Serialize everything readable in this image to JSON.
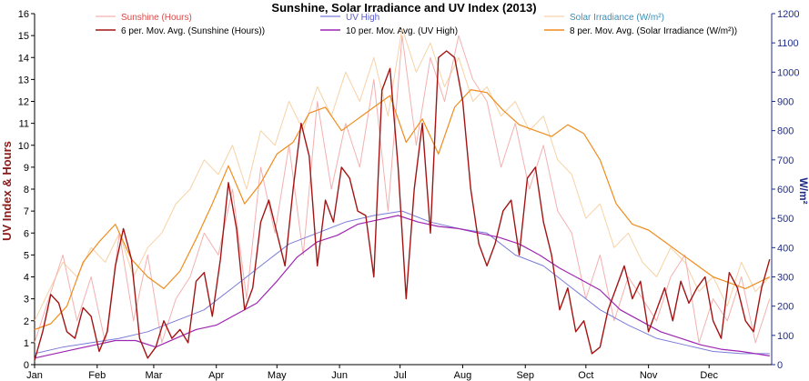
{
  "chart_data": {
    "type": "line",
    "title": "Sunshine, Solar Irradiance and UV Index (2013)",
    "ylabel": "UV Index & Hours",
    "y2label": "W/m²",
    "ylim": [
      0,
      16
    ],
    "y2lim": [
      0,
      1200
    ],
    "yticks": [
      "0",
      "1",
      "2",
      "3",
      "4",
      "5",
      "6",
      "7",
      "8",
      "9",
      "10",
      "11",
      "12",
      "13",
      "14",
      "15",
      "16"
    ],
    "y2ticks": [
      "0",
      "100",
      "200",
      "300",
      "400",
      "500",
      "600",
      "700",
      "800",
      "900",
      "1000",
      "1100",
      "1200"
    ],
    "xticks": [
      "Jan",
      "Feb",
      "Mar",
      "Apr",
      "May",
      "Jun",
      "Jul",
      "Aug",
      "Sep",
      "Oct",
      "Nov",
      "Dec"
    ],
    "legend_placement": "top",
    "grid": false,
    "series": [
      {
        "name": "Sunshine (Hours)",
        "axis": "left",
        "color": "#f4b0b0",
        "x": [
          0,
          7,
          14,
          21,
          28,
          35,
          42,
          49,
          56,
          63,
          70,
          77,
          84,
          91,
          98,
          105,
          112,
          119,
          126,
          133,
          140,
          147,
          154,
          161,
          168,
          175,
          182,
          189,
          196,
          203,
          210,
          217,
          224,
          231,
          238,
          245,
          252,
          259,
          266,
          273,
          280,
          287,
          294,
          301,
          308,
          315,
          322,
          329,
          336,
          343,
          350,
          357,
          364
        ],
        "values": [
          1,
          3,
          5,
          2,
          4,
          1,
          6,
          2,
          5,
          1,
          3,
          4,
          6,
          5,
          8,
          3,
          9,
          6,
          10,
          5,
          12,
          8,
          11,
          9,
          13,
          7,
          15,
          10,
          14,
          12,
          15,
          13,
          12,
          9,
          11,
          8,
          10,
          7,
          6,
          3,
          5,
          2,
          4,
          3,
          2,
          4,
          5,
          1,
          3,
          2,
          4,
          1,
          3
        ]
      },
      {
        "name": "UV High",
        "axis": "left",
        "color": "#7b7bd8",
        "x": [
          0,
          14,
          28,
          42,
          56,
          70,
          84,
          98,
          112,
          126,
          140,
          154,
          168,
          182,
          196,
          210,
          224,
          238,
          252,
          266,
          280,
          294,
          308,
          322,
          336,
          350,
          364
        ],
        "values": [
          0.5,
          0.8,
          1,
          1.2,
          1.5,
          2,
          2.5,
          3.5,
          4.5,
          5.5,
          6,
          6.5,
          6.8,
          7,
          6.5,
          6.2,
          6,
          5,
          4.5,
          3.5,
          2.5,
          1.8,
          1.2,
          0.9,
          0.6,
          0.5,
          0.5
        ]
      },
      {
        "name": "Solar Irradiance (W/m²)",
        "axis": "right",
        "color": "#f7d2a6",
        "x": [
          0,
          7,
          14,
          21,
          28,
          35,
          42,
          49,
          56,
          63,
          70,
          77,
          84,
          91,
          98,
          105,
          112,
          119,
          126,
          133,
          140,
          147,
          154,
          161,
          168,
          175,
          182,
          189,
          196,
          203,
          210,
          217,
          224,
          231,
          238,
          245,
          252,
          259,
          266,
          273,
          280,
          287,
          294,
          301,
          308,
          315,
          322,
          329,
          336,
          343,
          350,
          357,
          364
        ],
        "values": [
          150,
          250,
          350,
          300,
          400,
          350,
          450,
          300,
          400,
          450,
          550,
          600,
          700,
          650,
          750,
          600,
          800,
          750,
          900,
          800,
          950,
          850,
          1000,
          900,
          1050,
          850,
          1150,
          1000,
          1100,
          950,
          1050,
          900,
          950,
          850,
          900,
          800,
          850,
          700,
          650,
          500,
          550,
          400,
          450,
          350,
          300,
          400,
          350,
          250,
          300,
          200,
          350,
          250,
          300
        ]
      },
      {
        "name": "6 per. Mov. Avg. (Sunshine (Hours))",
        "axis": "left",
        "color": "#a31515",
        "x": [
          0,
          4,
          8,
          12,
          16,
          20,
          24,
          28,
          32,
          36,
          40,
          44,
          48,
          52,
          56,
          60,
          64,
          68,
          72,
          76,
          80,
          84,
          88,
          92,
          96,
          100,
          104,
          108,
          112,
          116,
          120,
          124,
          128,
          132,
          136,
          140,
          144,
          148,
          152,
          156,
          160,
          164,
          168,
          172,
          176,
          180,
          184,
          188,
          192,
          196,
          200,
          204,
          208,
          212,
          216,
          220,
          224,
          228,
          232,
          236,
          240,
          244,
          248,
          252,
          256,
          260,
          264,
          268,
          272,
          276,
          280,
          284,
          288,
          292,
          296,
          300,
          304,
          308,
          312,
          316,
          320,
          324,
          328,
          332,
          336,
          340,
          344,
          348,
          352,
          356,
          360,
          364
        ],
        "values": [
          0.2,
          1.5,
          3.2,
          2.8,
          1.5,
          1.2,
          2.6,
          2.2,
          0.6,
          1.5,
          4.5,
          6.2,
          4.8,
          1.2,
          0.3,
          0.8,
          2.0,
          1.2,
          1.6,
          1.0,
          3.8,
          4.2,
          2.2,
          4.8,
          8.3,
          6.2,
          2.5,
          3.5,
          6.5,
          7.5,
          6.0,
          4.5,
          8.0,
          11.0,
          9.5,
          4.5,
          7.5,
          6.5,
          9.0,
          8.5,
          7.0,
          6.8,
          4.0,
          12.5,
          13.5,
          9.0,
          3.0,
          8.0,
          11.0,
          6.0,
          14.0,
          14.3,
          14.0,
          12.0,
          8.0,
          5.5,
          4.5,
          5.5,
          7.0,
          7.5,
          5.0,
          8.5,
          9.0,
          6.5,
          5.0,
          2.5,
          3.5,
          1.5,
          2.0,
          0.5,
          0.8,
          2.5,
          3.5,
          4.5,
          3.0,
          3.8,
          1.5,
          2.5,
          3.5,
          2.0,
          3.8,
          2.8,
          3.5,
          4.0,
          2.0,
          1.2,
          4.2,
          3.5,
          2.0,
          1.5,
          3.5,
          4.8
        ]
      },
      {
        "name": "10 per. Mov. Avg. (UV High)",
        "axis": "left",
        "color": "#9c27b0",
        "x": [
          0,
          10,
          20,
          30,
          40,
          50,
          60,
          70,
          80,
          90,
          100,
          110,
          120,
          130,
          140,
          150,
          160,
          170,
          180,
          190,
          200,
          210,
          220,
          230,
          240,
          250,
          260,
          270,
          280,
          290,
          300,
          310,
          320,
          330,
          340,
          350,
          364
        ],
        "values": [
          0.3,
          0.5,
          0.7,
          0.9,
          1.1,
          1.1,
          0.8,
          1.2,
          1.6,
          1.8,
          2.3,
          2.8,
          3.8,
          4.9,
          5.6,
          5.9,
          6.4,
          6.6,
          6.8,
          6.5,
          6.3,
          6.2,
          6.0,
          5.8,
          5.5,
          5.0,
          4.4,
          3.9,
          3.4,
          2.5,
          2.0,
          1.5,
          1.2,
          0.9,
          0.7,
          0.6,
          0.4
        ]
      },
      {
        "name": "8 per. Mov. Avg. (Solar Irradiance (W/m²))",
        "axis": "right",
        "color": "#f08c1e",
        "x": [
          0,
          8,
          16,
          24,
          32,
          40,
          48,
          56,
          64,
          72,
          80,
          88,
          96,
          104,
          112,
          120,
          128,
          136,
          144,
          152,
          160,
          168,
          176,
          184,
          192,
          200,
          208,
          216,
          224,
          232,
          240,
          248,
          256,
          264,
          272,
          280,
          288,
          296,
          304,
          312,
          320,
          328,
          336,
          344,
          352,
          364
        ],
        "values": [
          120,
          140,
          200,
          350,
          420,
          480,
          360,
          300,
          260,
          320,
          430,
          550,
          680,
          550,
          620,
          720,
          760,
          860,
          880,
          800,
          840,
          880,
          920,
          760,
          840,
          720,
          880,
          940,
          930,
          870,
          820,
          800,
          780,
          820,
          790,
          700,
          550,
          480,
          460,
          420,
          380,
          340,
          300,
          280,
          260,
          300
        ]
      }
    ]
  }
}
